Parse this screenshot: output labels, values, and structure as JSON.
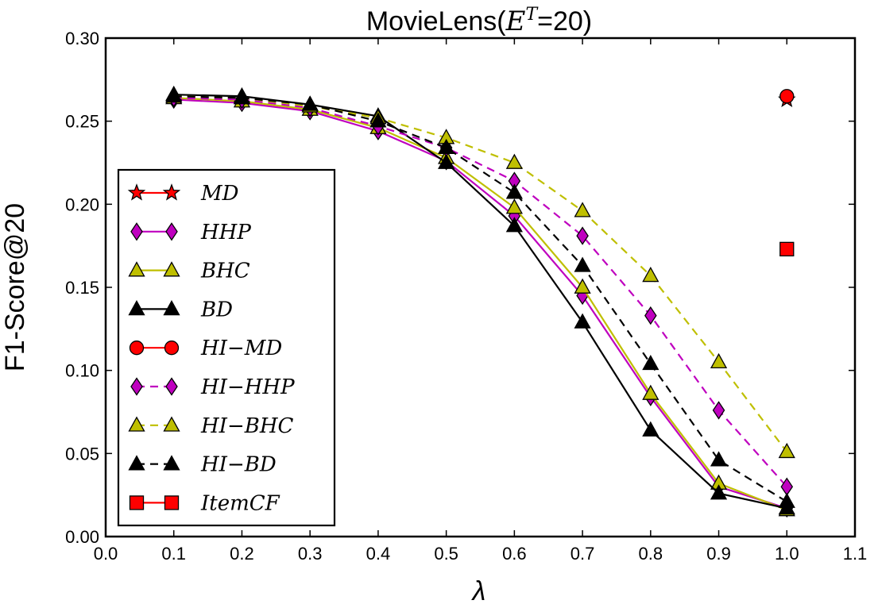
{
  "chart_data": {
    "type": "line",
    "title": "MovieLens(E^T=20)",
    "title_parts": {
      "prefix": "MovieLens(",
      "symbol": "E",
      "superscript": "T",
      "suffix": "=20)"
    },
    "xlabel": "λ",
    "ylabel": "F1-Score@20",
    "xlim": [
      0.0,
      1.1
    ],
    "ylim": [
      0.0,
      0.3
    ],
    "xticks": [
      "0.0",
      "0.1",
      "0.2",
      "0.3",
      "0.4",
      "0.5",
      "0.6",
      "0.7",
      "0.8",
      "0.9",
      "1.0",
      "1.1"
    ],
    "yticks": [
      "0.00",
      "0.05",
      "0.10",
      "0.15",
      "0.20",
      "0.25",
      "0.30"
    ],
    "grid": false,
    "legend_position": "left",
    "x": [
      0.1,
      0.2,
      0.3,
      0.4,
      0.5,
      0.6,
      0.7,
      0.8,
      0.9,
      1.0
    ],
    "series": [
      {
        "name": "MD",
        "color": "#ff0000",
        "marker": "star",
        "linestyle": "solid",
        "x": [
          1.0
        ],
        "values": [
          0.263
        ]
      },
      {
        "name": "HHP",
        "color": "#bf00bf",
        "marker": "diamond",
        "linestyle": "solid",
        "values": [
          0.263,
          0.261,
          0.256,
          0.244,
          0.226,
          0.193,
          0.145,
          0.084,
          0.03,
          0.017
        ]
      },
      {
        "name": "BHC",
        "color": "#bfbf00",
        "marker": "triangle",
        "linestyle": "solid",
        "values": [
          0.264,
          0.262,
          0.257,
          0.246,
          0.228,
          0.198,
          0.15,
          0.086,
          0.032,
          0.016
        ]
      },
      {
        "name": "BD",
        "color": "#000000",
        "marker": "triangle",
        "linestyle": "solid",
        "values": [
          0.266,
          0.265,
          0.26,
          0.253,
          0.225,
          0.187,
          0.129,
          0.064,
          0.026,
          0.017
        ]
      },
      {
        "name": "HI−MD",
        "color": "#ff0000",
        "marker": "circle",
        "linestyle": "solid",
        "x": [
          1.0
        ],
        "values": [
          0.265
        ]
      },
      {
        "name": "HI−HHP",
        "color": "#bf00bf",
        "marker": "diamond",
        "linestyle": "dashed",
        "values": [
          0.264,
          0.263,
          0.258,
          0.247,
          0.234,
          0.214,
          0.181,
          0.133,
          0.076,
          0.03
        ]
      },
      {
        "name": "HI−BHC",
        "color": "#bfbf00",
        "marker": "triangle",
        "linestyle": "dashed",
        "values": [
          0.265,
          0.264,
          0.259,
          0.252,
          0.24,
          0.225,
          0.196,
          0.157,
          0.105,
          0.051
        ]
      },
      {
        "name": "HI−BD",
        "color": "#000000",
        "marker": "triangle",
        "linestyle": "dashed",
        "values": [
          0.265,
          0.264,
          0.26,
          0.25,
          0.234,
          0.207,
          0.163,
          0.104,
          0.046,
          0.021
        ]
      },
      {
        "name": "ItemCF",
        "color": "#ff0000",
        "marker": "square",
        "linestyle": "solid",
        "x": [
          1.0
        ],
        "values": [
          0.173
        ]
      }
    ]
  }
}
